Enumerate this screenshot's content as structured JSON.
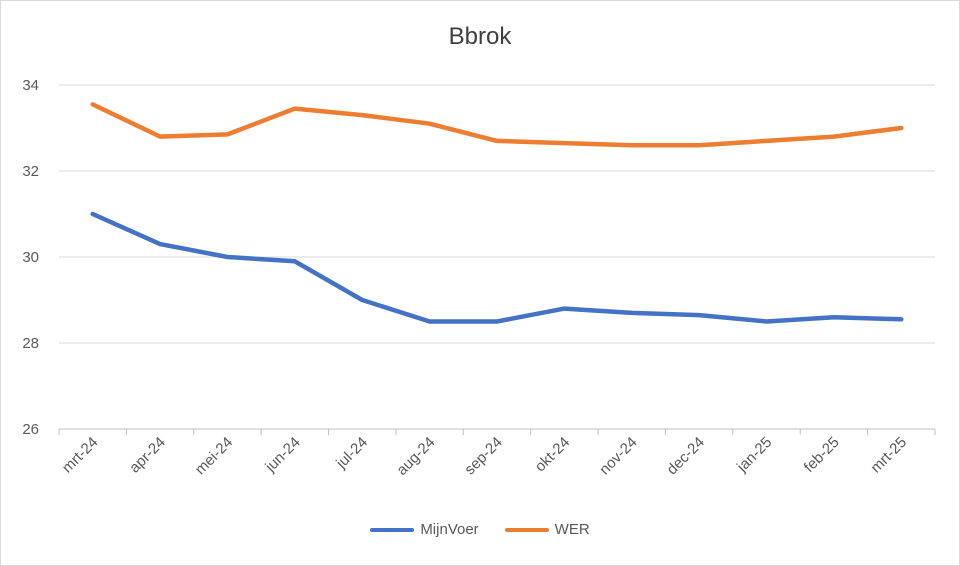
{
  "chart_data": {
    "type": "line",
    "title": "Bbrok",
    "xlabel": "",
    "ylabel": "",
    "categories": [
      "mrt-24",
      "apr-24",
      "mei-24",
      "jun-24",
      "jul-24",
      "aug-24",
      "sep-24",
      "okt-24",
      "nov-24",
      "dec-24",
      "jan-25",
      "feb-25",
      "mrt-25"
    ],
    "ylim": [
      26,
      34
    ],
    "yticks": [
      26,
      28,
      30,
      32,
      34
    ],
    "grid": true,
    "legend_position": "bottom",
    "series": [
      {
        "name": "MijnVoer",
        "color": "#4472c4",
        "values": [
          31.0,
          30.3,
          30.0,
          29.9,
          29.0,
          28.5,
          28.5,
          28.8,
          28.7,
          28.65,
          28.5,
          28.6,
          28.55
        ]
      },
      {
        "name": "WER",
        "color": "#ed7d31",
        "values": [
          33.55,
          32.8,
          32.85,
          33.45,
          33.3,
          33.1,
          32.7,
          32.65,
          32.6,
          32.6,
          32.7,
          32.8,
          33.0
        ]
      }
    ]
  }
}
